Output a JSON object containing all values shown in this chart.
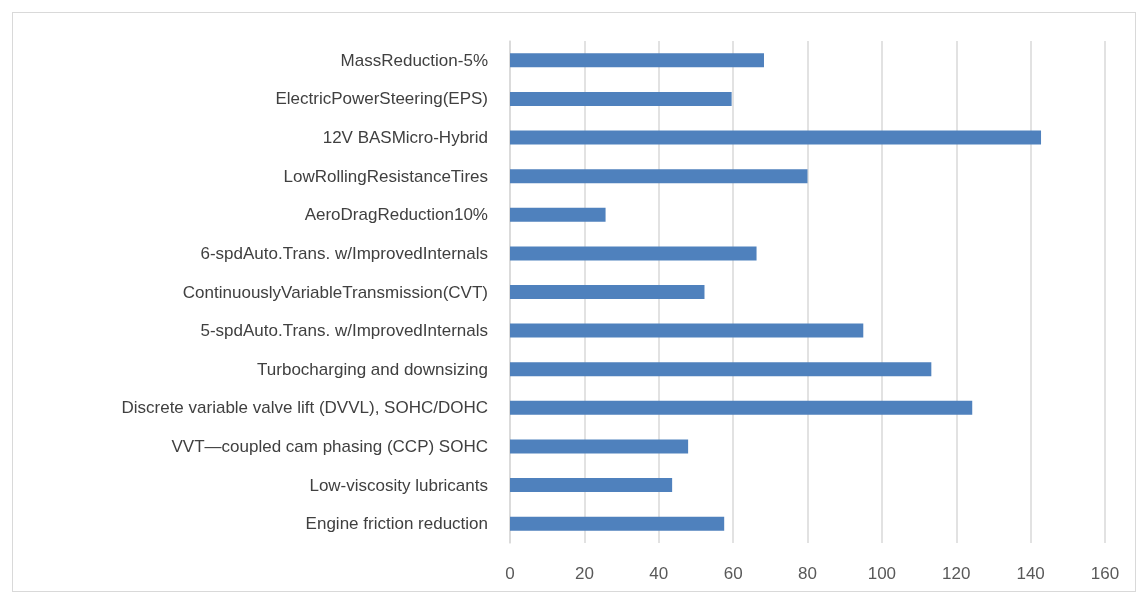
{
  "chart_data": {
    "type": "bar",
    "orientation": "horizontal",
    "categories": [
      "MassReduction-5%",
      "ElectricPowerSteering(EPS)",
      "12V BASMicro-Hybrid",
      "LowRollingResistanceTires",
      "AeroDragReduction10%",
      "6-spdAuto.Trans. w/ImprovedInternals",
      "ContinuouslyVariableTransmission(CVT)",
      "5-spdAuto.Trans. w/ImprovedInternals",
      "Turbocharging and downsizing",
      "Discrete variable valve lift (DVVL), SOHC/DOHC",
      "VVT—coupled cam phasing (CCP) SOHC",
      "Low-viscosity lubricants",
      "Engine friction reduction"
    ],
    "values": [
      68.3,
      59.6,
      142.8,
      80,
      25.7,
      66.3,
      52.3,
      95,
      113.3,
      124.3,
      47.9,
      43.6,
      57.6
    ],
    "color": "#4f81bd",
    "xlim": [
      0,
      160
    ],
    "xticks": [
      0,
      20,
      40,
      60,
      80,
      100,
      120,
      140,
      160
    ],
    "grid": "x"
  }
}
